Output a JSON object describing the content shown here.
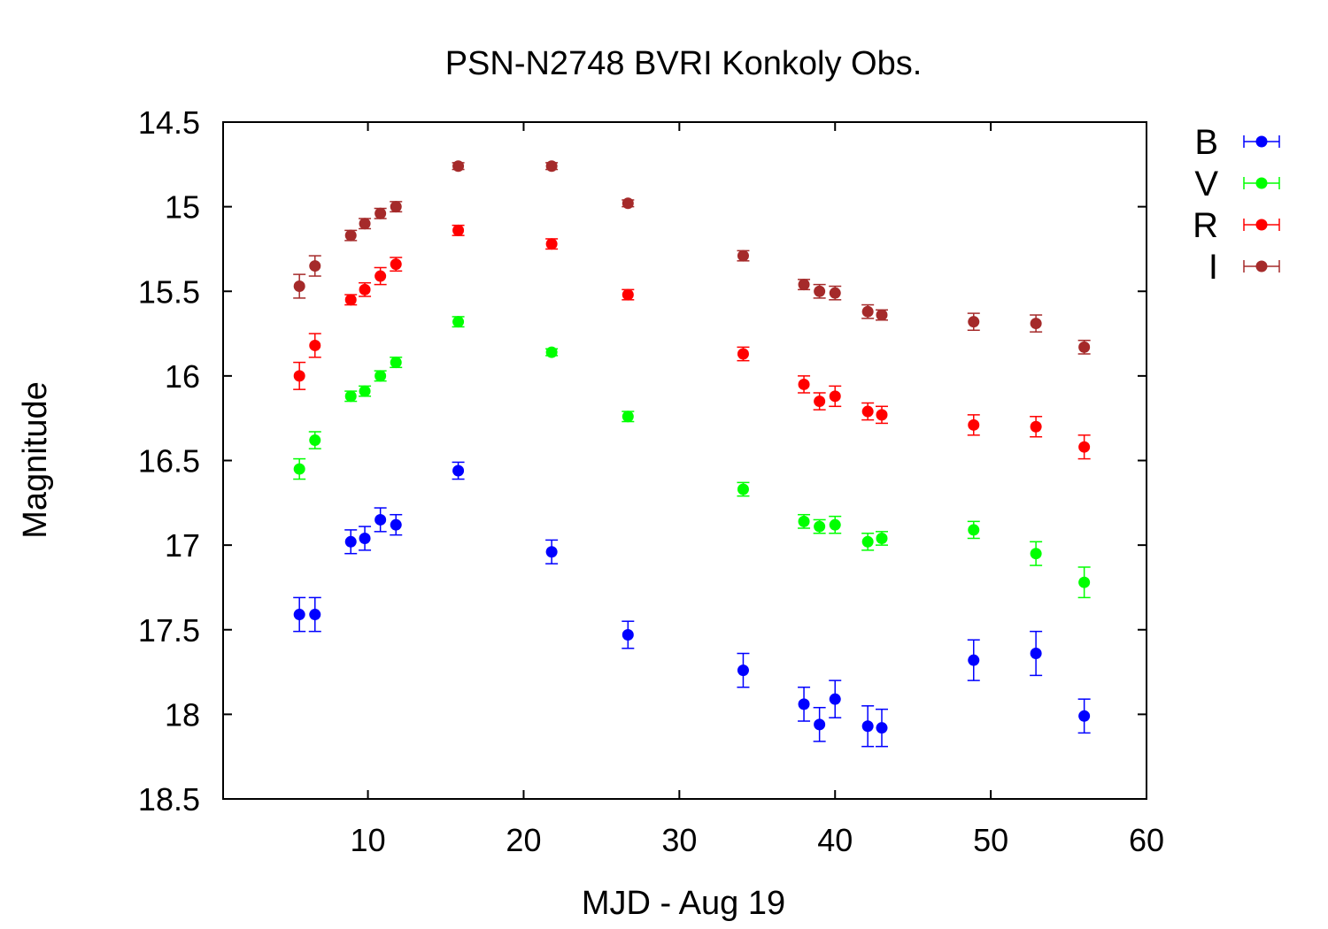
{
  "chart_data": {
    "type": "scatter",
    "title": "PSN-N2748 BVRI Konkoly Obs.",
    "xlabel": "MJD - Aug 19",
    "ylabel": "Magnitude",
    "xlim": [
      0.7,
      60
    ],
    "ylim": [
      18.5,
      14.5
    ],
    "y_inverted": true,
    "x_ticks": [
      10,
      20,
      30,
      40,
      50,
      60
    ],
    "y_ticks": [
      14.5,
      15,
      15.5,
      16,
      16.5,
      17,
      17.5,
      18,
      18.5
    ],
    "x_tick_labels": [
      "10",
      "20",
      "30",
      "40",
      "50",
      "60"
    ],
    "y_tick_labels": [
      "14.5",
      "15",
      "15.5",
      "16",
      "16.5",
      "17",
      "17.5",
      "18",
      "18.5"
    ],
    "grid": false,
    "legend_position": "outside-right-top",
    "markers": "points with error bars",
    "series": [
      {
        "name": "B",
        "color": "#0000ff",
        "points": [
          {
            "x": 5.6,
            "y": 17.41,
            "err": 0.1
          },
          {
            "x": 6.6,
            "y": 17.41,
            "err": 0.1
          },
          {
            "x": 8.9,
            "y": 16.98,
            "err": 0.07
          },
          {
            "x": 9.8,
            "y": 16.96,
            "err": 0.07
          },
          {
            "x": 10.8,
            "y": 16.85,
            "err": 0.07
          },
          {
            "x": 11.8,
            "y": 16.88,
            "err": 0.06
          },
          {
            "x": 15.8,
            "y": 16.56,
            "err": 0.05
          },
          {
            "x": 21.8,
            "y": 17.04,
            "err": 0.07
          },
          {
            "x": 26.7,
            "y": 17.53,
            "err": 0.08
          },
          {
            "x": 34.1,
            "y": 17.74,
            "err": 0.1
          },
          {
            "x": 38.0,
            "y": 17.94,
            "err": 0.1
          },
          {
            "x": 39.0,
            "y": 18.06,
            "err": 0.1
          },
          {
            "x": 40.0,
            "y": 17.91,
            "err": 0.11
          },
          {
            "x": 42.1,
            "y": 18.07,
            "err": 0.12
          },
          {
            "x": 43.0,
            "y": 18.08,
            "err": 0.11
          },
          {
            "x": 48.9,
            "y": 17.68,
            "err": 0.12
          },
          {
            "x": 52.9,
            "y": 17.64,
            "err": 0.13
          },
          {
            "x": 56.0,
            "y": 18.01,
            "err": 0.1
          }
        ]
      },
      {
        "name": "V",
        "color": "#00ff00",
        "points": [
          {
            "x": 5.6,
            "y": 16.55,
            "err": 0.06
          },
          {
            "x": 6.6,
            "y": 16.38,
            "err": 0.05
          },
          {
            "x": 8.9,
            "y": 16.12,
            "err": 0.03
          },
          {
            "x": 9.8,
            "y": 16.09,
            "err": 0.03
          },
          {
            "x": 10.8,
            "y": 16.0,
            "err": 0.03
          },
          {
            "x": 11.8,
            "y": 15.92,
            "err": 0.03
          },
          {
            "x": 15.8,
            "y": 15.68,
            "err": 0.03
          },
          {
            "x": 21.8,
            "y": 15.86,
            "err": 0.02
          },
          {
            "x": 26.7,
            "y": 16.24,
            "err": 0.03
          },
          {
            "x": 34.1,
            "y": 16.67,
            "err": 0.04
          },
          {
            "x": 38.0,
            "y": 16.86,
            "err": 0.04
          },
          {
            "x": 39.0,
            "y": 16.89,
            "err": 0.04
          },
          {
            "x": 40.0,
            "y": 16.88,
            "err": 0.05
          },
          {
            "x": 42.1,
            "y": 16.98,
            "err": 0.05
          },
          {
            "x": 43.0,
            "y": 16.96,
            "err": 0.04
          },
          {
            "x": 48.9,
            "y": 16.91,
            "err": 0.05
          },
          {
            "x": 52.9,
            "y": 17.05,
            "err": 0.07
          },
          {
            "x": 56.0,
            "y": 17.22,
            "err": 0.09
          }
        ]
      },
      {
        "name": "R",
        "color": "#ff0000",
        "points": [
          {
            "x": 5.6,
            "y": 16.0,
            "err": 0.08
          },
          {
            "x": 6.6,
            "y": 15.82,
            "err": 0.07
          },
          {
            "x": 8.9,
            "y": 15.55,
            "err": 0.03
          },
          {
            "x": 9.8,
            "y": 15.49,
            "err": 0.04
          },
          {
            "x": 10.8,
            "y": 15.41,
            "err": 0.05
          },
          {
            "x": 11.8,
            "y": 15.34,
            "err": 0.04
          },
          {
            "x": 15.8,
            "y": 15.14,
            "err": 0.03
          },
          {
            "x": 21.8,
            "y": 15.22,
            "err": 0.03
          },
          {
            "x": 26.7,
            "y": 15.52,
            "err": 0.03
          },
          {
            "x": 34.1,
            "y": 15.87,
            "err": 0.04
          },
          {
            "x": 38.0,
            "y": 16.05,
            "err": 0.05
          },
          {
            "x": 39.0,
            "y": 16.15,
            "err": 0.05
          },
          {
            "x": 40.0,
            "y": 16.12,
            "err": 0.06
          },
          {
            "x": 42.1,
            "y": 16.21,
            "err": 0.05
          },
          {
            "x": 43.0,
            "y": 16.23,
            "err": 0.05
          },
          {
            "x": 48.9,
            "y": 16.29,
            "err": 0.06
          },
          {
            "x": 52.9,
            "y": 16.3,
            "err": 0.06
          },
          {
            "x": 56.0,
            "y": 16.42,
            "err": 0.07
          }
        ]
      },
      {
        "name": "I",
        "color": "#a52a2a",
        "points": [
          {
            "x": 5.6,
            "y": 15.47,
            "err": 0.07
          },
          {
            "x": 6.6,
            "y": 15.35,
            "err": 0.06
          },
          {
            "x": 8.9,
            "y": 15.17,
            "err": 0.03
          },
          {
            "x": 9.8,
            "y": 15.1,
            "err": 0.03
          },
          {
            "x": 10.8,
            "y": 15.04,
            "err": 0.03
          },
          {
            "x": 11.8,
            "y": 15.0,
            "err": 0.03
          },
          {
            "x": 15.8,
            "y": 14.76,
            "err": 0.02
          },
          {
            "x": 21.8,
            "y": 14.76,
            "err": 0.02
          },
          {
            "x": 26.7,
            "y": 14.98,
            "err": 0.02
          },
          {
            "x": 34.1,
            "y": 15.29,
            "err": 0.03
          },
          {
            "x": 38.0,
            "y": 15.46,
            "err": 0.03
          },
          {
            "x": 39.0,
            "y": 15.5,
            "err": 0.04
          },
          {
            "x": 40.0,
            "y": 15.51,
            "err": 0.04
          },
          {
            "x": 42.1,
            "y": 15.62,
            "err": 0.04
          },
          {
            "x": 43.0,
            "y": 15.64,
            "err": 0.03
          },
          {
            "x": 48.9,
            "y": 15.68,
            "err": 0.05
          },
          {
            "x": 52.9,
            "y": 15.69,
            "err": 0.05
          },
          {
            "x": 56.0,
            "y": 15.83,
            "err": 0.04
          }
        ]
      }
    ]
  }
}
